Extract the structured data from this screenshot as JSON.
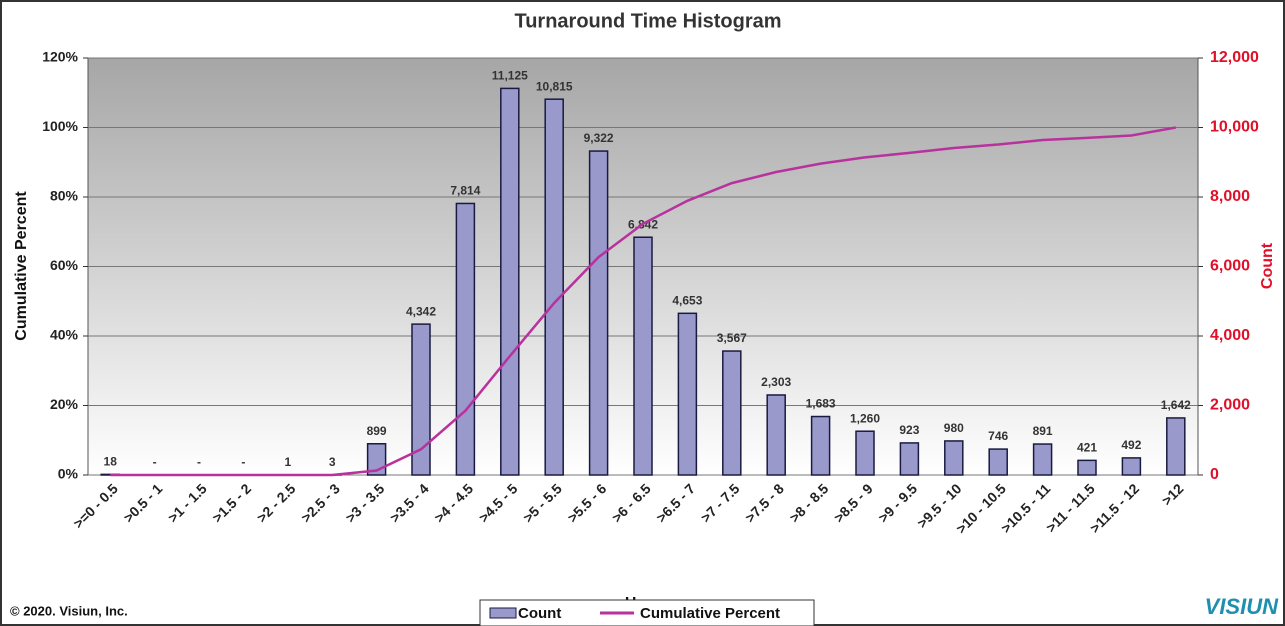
{
  "chart_data": {
    "type": "bar",
    "title": "Turnaround Time Histogram",
    "x_label": "Hours",
    "y_label": "Cumulative Percent",
    "y2_label": "Count",
    "source": "© 2020. Visiun, Inc.",
    "logo": "VISIUN",
    "legend": "bottom",
    "categories": [
      ">=0 - 0.5",
      ">0.5 - 1",
      ">1 - 1.5",
      ">1.5 - 2",
      ">2 - 2.5",
      ">2.5 - 3",
      ">3 - 3.5",
      ">3.5 - 4",
      ">4 - 4.5",
      ">4.5 - 5",
      ">5 - 5.5",
      ">5.5 - 6",
      ">6 - 6.5",
      ">6.5 - 7",
      ">7 - 7.5",
      ">7.5 - 8",
      ">8 - 8.5",
      ">8.5 - 9",
      ">9 - 9.5",
      ">9.5 - 10",
      ">10 - 10.5",
      ">10.5 - 11",
      ">11 - 11.5",
      ">11.5 - 12",
      ">12"
    ],
    "series": [
      {
        "name": "Count",
        "type": "bar",
        "axis": "y2",
        "color": "#9999cc",
        "values": [
          18,
          0,
          0,
          0,
          1,
          3,
          899,
          4342,
          7814,
          11125,
          10815,
          9322,
          6842,
          4653,
          3567,
          2303,
          1683,
          1260,
          923,
          980,
          746,
          891,
          421,
          492,
          1642
        ],
        "value_labels": [
          "18",
          "-",
          "-",
          "-",
          "1",
          "3",
          "899",
          "4,342",
          "7,814",
          "11,125",
          "10,815",
          "9,322",
          "6,842",
          "4,653",
          "3,567",
          "2,303",
          "1,683",
          "1,260",
          "923",
          "980",
          "746",
          "891",
          "421",
          "492",
          "1,642"
        ]
      },
      {
        "name": "Cumulative Percent",
        "type": "line",
        "color": "#b8329e",
        "values": [
          0,
          0,
          0,
          0,
          0,
          0,
          1.3,
          7.4,
          18.5,
          34.2,
          49.5,
          62.7,
          72.3,
          78.9,
          84.0,
          87.2,
          89.6,
          91.4,
          92.7,
          94.1,
          95.1,
          96.4,
          97.0,
          97.7,
          100
        ]
      }
    ],
    "ylim": [
      0,
      120
    ],
    "yticks": [
      {
        "value": 0,
        "label": "0%"
      },
      {
        "value": 20,
        "label": "20%"
      },
      {
        "value": 40,
        "label": "40%"
      },
      {
        "value": 60,
        "label": "60%"
      },
      {
        "value": 80,
        "label": "80%"
      },
      {
        "value": 100,
        "label": "100%"
      },
      {
        "value": 120,
        "label": "120%"
      }
    ],
    "y2lim": [
      0,
      12000
    ],
    "y2ticks": [
      0,
      {
        "value": 2000,
        "label": "2,000"
      },
      {
        "value": 4000,
        "label": "4,000"
      },
      {
        "value": 6000,
        "label": "6,000"
      },
      {
        "value": 8000,
        "label": "8,000"
      },
      {
        "value": 10000,
        "label": "10,000"
      },
      {
        "value": 12000,
        "label": "12,000"
      }
    ],
    "y2_color": "#e0102a",
    "grid": true
  }
}
